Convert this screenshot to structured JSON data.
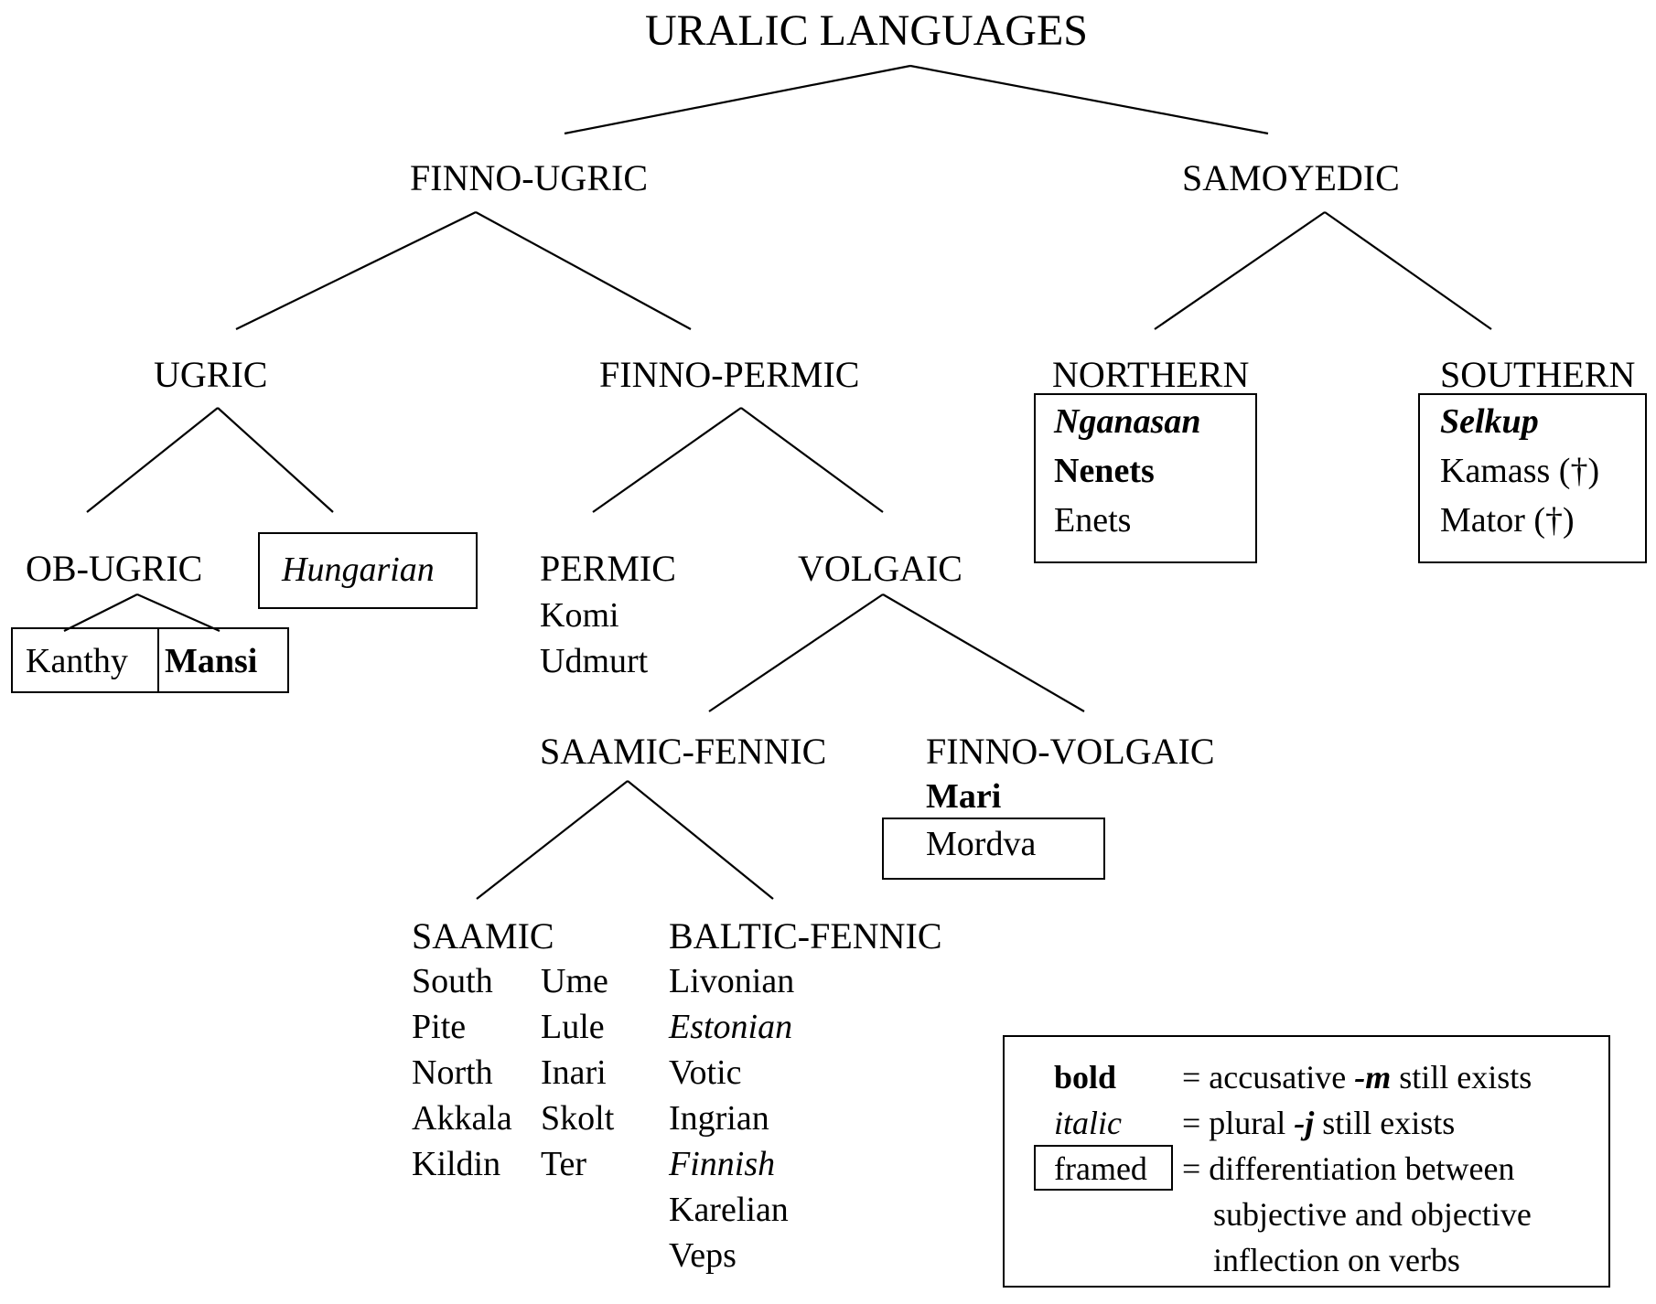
{
  "title": "URALIC LANGUAGES",
  "nodes": {
    "finno_ugric": "FINNO-UGRIC",
    "samoyedic": "SAMOYEDIC",
    "ugric": "UGRIC",
    "finno_permic": "FINNO-PERMIC",
    "northern": "NORTHERN",
    "southern": "SOUTHERN",
    "ob_ugric": "OB-UGRIC",
    "permic": "PERMIC",
    "volgaic": "VOLGAIC",
    "saamic_fennic": "SAAMIC-FENNIC",
    "finno_volgaic": "FINNO-VOLGAIC",
    "saamic": "SAAMIC",
    "baltic_fennic": "BALTIC-FENNIC"
  },
  "languages": {
    "hungarian": "Hungarian",
    "kanthy": "Kanthy",
    "mansi": "Mansi",
    "komi": "Komi",
    "udmurt": "Udmurt",
    "nganasan": "Nganasan",
    "nenets": "Nenets",
    "enets": "Enets",
    "selkup": "Selkup",
    "kamass": "Kamass (†)",
    "mator": "Mator (†)",
    "mari": "Mari",
    "mordva": "Mordva",
    "saamic_col1": [
      "South",
      "Pite",
      "North",
      "Akkala",
      "Kildin"
    ],
    "saamic_col2": [
      "Ume",
      "Lule",
      "Inari",
      "Skolt",
      "Ter"
    ],
    "baltic_fennic": [
      "Livonian",
      "Estonian",
      "Votic",
      "Ingrian",
      "Finnish",
      "Karelian",
      "Veps"
    ]
  },
  "legend": {
    "bold_label": "bold",
    "bold_desc_pre": "= accusative ",
    "bold_desc_em": "-m",
    "bold_desc_post": " still exists",
    "italic_label": "italic",
    "italic_desc_pre": "= plural ",
    "italic_desc_em": "-j",
    "italic_desc_post": " still exists",
    "framed_label": "framed",
    "framed_desc_1": "= differentiation between",
    "framed_desc_2": "subjective and objective",
    "framed_desc_3": "inflection on verbs"
  }
}
